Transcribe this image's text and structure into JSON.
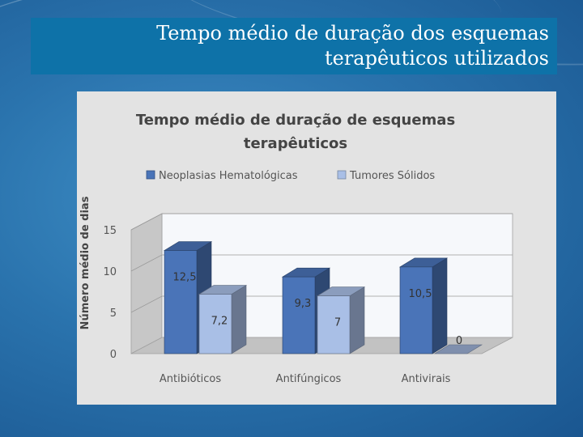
{
  "slide": {
    "title_line1": "Tempo médio de duração dos esquemas",
    "title_line2": "terapêuticos utilizados"
  },
  "colors": {
    "series1": "#4a74b8",
    "series2": "#a9bfe6",
    "background_accent": "#0e72a8"
  },
  "chart_data": {
    "type": "bar",
    "title_line1": "Tempo médio de duração de esquemas",
    "title_line2": "terapêuticos",
    "ylabel": "Número médio de dias",
    "xlabel": "",
    "categories": [
      "Antibióticos",
      "Antifúngicos",
      "Antivirais"
    ],
    "series": [
      {
        "name": "Neoplasias Hematológicas",
        "values": [
          12.5,
          9.3,
          10.5
        ],
        "labels": [
          "12,5",
          "9,3",
          "10,5"
        ]
      },
      {
        "name": "Tumores Sólidos",
        "values": [
          7.2,
          7,
          0
        ],
        "labels": [
          "7,2",
          "7",
          "0"
        ]
      }
    ],
    "ylim": [
      0,
      15
    ],
    "yticks": [
      0,
      5,
      10,
      15
    ],
    "grid": true,
    "legend_position": "top"
  }
}
